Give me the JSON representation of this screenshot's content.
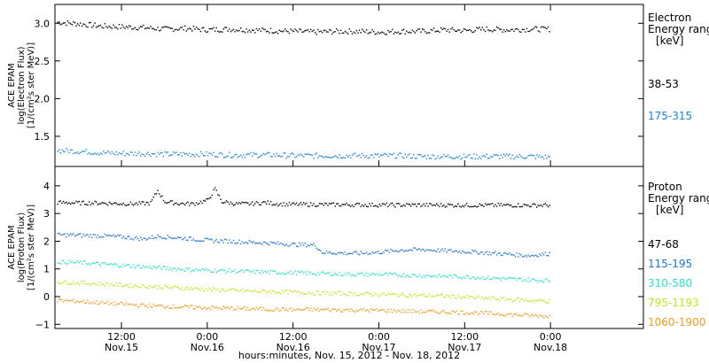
{
  "xlabel": "hours:minutes, Nov. 15, 2012 - Nov. 18, 2012",
  "x_ticks": [
    {
      "time": "12:00",
      "date": "Nov.15",
      "hours": 12
    },
    {
      "time": "0:00",
      "date": "Nov.16",
      "hours": 24
    },
    {
      "time": "12:00",
      "date": "Nov.16",
      "hours": 36
    },
    {
      "time": "0:00",
      "date": "Nov.17",
      "hours": 48
    },
    {
      "time": "12:00",
      "date": "Nov.17",
      "hours": 60
    },
    {
      "time": "0:00",
      "date": "Nov.18",
      "hours": 72
    }
  ],
  "chart_data": [
    {
      "type": "scatter",
      "ylabel_lines": [
        "ACE EPAM",
        "log(Electron Flux)",
        "[1/(cm²s ster MeV)]"
      ],
      "xlim_hours": [
        2.7,
        85
      ],
      "ylim": [
        1.1,
        3.25
      ],
      "y_ticks": [
        1.5,
        2.0,
        2.5,
        3.0
      ],
      "y_tick_labels": [
        "1.5",
        "2.0",
        "2.5",
        "3.0"
      ],
      "legend_title": [
        "Electron",
        "Energy ranges",
        "[keV]"
      ],
      "series": [
        {
          "name": "38-53",
          "color": "#000000",
          "points": [
            [
              3,
              3.02
            ],
            [
              6,
              3.0
            ],
            [
              9,
              2.97
            ],
            [
              12,
              2.96
            ],
            [
              15,
              2.95
            ],
            [
              18,
              2.93
            ],
            [
              21,
              2.94
            ],
            [
              24,
              2.92
            ],
            [
              27,
              2.93
            ],
            [
              30,
              2.92
            ],
            [
              33,
              2.91
            ],
            [
              36,
              2.9
            ],
            [
              39,
              2.89
            ],
            [
              42,
              2.9
            ],
            [
              45,
              2.9
            ],
            [
              48,
              2.89
            ],
            [
              51,
              2.9
            ],
            [
              54,
              2.9
            ],
            [
              57,
              2.92
            ],
            [
              60,
              2.91
            ],
            [
              63,
              2.93
            ],
            [
              66,
              2.92
            ],
            [
              69,
              2.93
            ],
            [
              72,
              2.93
            ]
          ]
        },
        {
          "name": "175-315",
          "color": "#1a86d6",
          "points": [
            [
              3,
              1.32
            ],
            [
              6,
              1.31
            ],
            [
              9,
              1.29
            ],
            [
              12,
              1.28
            ],
            [
              15,
              1.28
            ],
            [
              18,
              1.27
            ],
            [
              21,
              1.27
            ],
            [
              24,
              1.27
            ],
            [
              27,
              1.26
            ],
            [
              30,
              1.26
            ],
            [
              33,
              1.26
            ],
            [
              36,
              1.25
            ],
            [
              39,
              1.25
            ],
            [
              42,
              1.25
            ],
            [
              45,
              1.25
            ],
            [
              48,
              1.25
            ],
            [
              51,
              1.25
            ],
            [
              54,
              1.24
            ],
            [
              57,
              1.24
            ],
            [
              60,
              1.24
            ],
            [
              63,
              1.24
            ],
            [
              66,
              1.24
            ],
            [
              69,
              1.24
            ],
            [
              72,
              1.23
            ]
          ]
        }
      ]
    },
    {
      "type": "scatter",
      "ylabel_lines": [
        "ACE EPAM",
        "log(Proton Flux)",
        "[1/(cm²s ster MeV)]"
      ],
      "xlim_hours": [
        2.7,
        85
      ],
      "ylim": [
        -1.15,
        4.7
      ],
      "y_ticks": [
        -1,
        0,
        1,
        2,
        3,
        4
      ],
      "y_tick_labels": [
        "−1",
        "0",
        "1",
        "2",
        "3",
        "4"
      ],
      "legend_title": [
        "Proton",
        "Energy ranges",
        "[keV]"
      ],
      "series": [
        {
          "name": "47-68",
          "color": "#000000",
          "points": [
            [
              3,
              3.42
            ],
            [
              6,
              3.4
            ],
            [
              9,
              3.4
            ],
            [
              12,
              3.38
            ],
            [
              14,
              3.37
            ],
            [
              16,
              3.4
            ],
            [
              17,
              3.85
            ],
            [
              18,
              3.45
            ],
            [
              20,
              3.38
            ],
            [
              22,
              3.37
            ],
            [
              24,
              3.5
            ],
            [
              25,
              3.9
            ],
            [
              26,
              3.45
            ],
            [
              28,
              3.37
            ],
            [
              30,
              3.37
            ],
            [
              32,
              3.42
            ],
            [
              34,
              3.36
            ],
            [
              36,
              3.35
            ],
            [
              42,
              3.34
            ],
            [
              48,
              3.33
            ],
            [
              54,
              3.33
            ],
            [
              60,
              3.32
            ],
            [
              66,
              3.32
            ],
            [
              72,
              3.32
            ]
          ]
        },
        {
          "name": "115-195",
          "color": "#1a76d6",
          "points": [
            [
              3,
              2.25
            ],
            [
              6,
              2.24
            ],
            [
              9,
              2.22
            ],
            [
              12,
              2.18
            ],
            [
              15,
              2.1
            ],
            [
              17,
              2.2
            ],
            [
              18,
              2.18
            ],
            [
              21,
              2.12
            ],
            [
              24,
              2.05
            ],
            [
              27,
              2.02
            ],
            [
              30,
              1.98
            ],
            [
              33,
              1.95
            ],
            [
              36,
              1.9
            ],
            [
              39,
              1.88
            ],
            [
              40,
              1.62
            ],
            [
              42,
              1.6
            ],
            [
              45,
              1.58
            ],
            [
              48,
              1.62
            ],
            [
              51,
              1.7
            ],
            [
              54,
              1.72
            ],
            [
              57,
              1.68
            ],
            [
              60,
              1.65
            ],
            [
              63,
              1.6
            ],
            [
              66,
              1.55
            ],
            [
              69,
              1.5
            ],
            [
              72,
              1.58
            ]
          ]
        },
        {
          "name": "310-580",
          "color": "#2de0c8",
          "points": [
            [
              3,
              1.28
            ],
            [
              6,
              1.25
            ],
            [
              9,
              1.2
            ],
            [
              12,
              1.15
            ],
            [
              15,
              1.1
            ],
            [
              18,
              1.05
            ],
            [
              21,
              1.0
            ],
            [
              24,
              0.97
            ],
            [
              27,
              0.95
            ],
            [
              30,
              0.92
            ],
            [
              33,
              0.9
            ],
            [
              36,
              0.88
            ],
            [
              39,
              0.86
            ],
            [
              42,
              0.84
            ],
            [
              45,
              0.82
            ],
            [
              48,
              0.82
            ],
            [
              51,
              0.8
            ],
            [
              54,
              0.78
            ],
            [
              57,
              0.76
            ],
            [
              60,
              0.74
            ],
            [
              63,
              0.7
            ],
            [
              66,
              0.66
            ],
            [
              69,
              0.62
            ],
            [
              72,
              0.6
            ]
          ]
        },
        {
          "name": "795-1193",
          "color": "#c8e020",
          "points": [
            [
              3,
              0.55
            ],
            [
              6,
              0.52
            ],
            [
              9,
              0.48
            ],
            [
              12,
              0.44
            ],
            [
              15,
              0.4
            ],
            [
              18,
              0.36
            ],
            [
              21,
              0.32
            ],
            [
              24,
              0.28
            ],
            [
              27,
              0.25
            ],
            [
              30,
              0.22
            ],
            [
              33,
              0.2
            ],
            [
              36,
              0.18
            ],
            [
              39,
              0.15
            ],
            [
              42,
              0.14
            ],
            [
              45,
              0.12
            ],
            [
              48,
              0.1
            ],
            [
              51,
              0.08
            ],
            [
              54,
              0.06
            ],
            [
              57,
              0.04
            ],
            [
              60,
              0.0
            ],
            [
              63,
              -0.04
            ],
            [
              66,
              -0.08
            ],
            [
              69,
              -0.12
            ],
            [
              72,
              -0.15
            ]
          ]
        },
        {
          "name": "1060-1900",
          "color": "#f29a1a",
          "points": [
            [
              3,
              -0.12
            ],
            [
              6,
              -0.15
            ],
            [
              9,
              -0.2
            ],
            [
              12,
              -0.25
            ],
            [
              15,
              -0.3
            ],
            [
              18,
              -0.33
            ],
            [
              21,
              -0.36
            ],
            [
              24,
              -0.38
            ],
            [
              27,
              -0.4
            ],
            [
              30,
              -0.42
            ],
            [
              33,
              -0.44
            ],
            [
              36,
              -0.45
            ],
            [
              39,
              -0.45
            ],
            [
              42,
              -0.46
            ],
            [
              45,
              -0.47
            ],
            [
              48,
              -0.48
            ],
            [
              51,
              -0.5
            ],
            [
              54,
              -0.52
            ],
            [
              57,
              -0.53
            ],
            [
              60,
              -0.55
            ],
            [
              63,
              -0.58
            ],
            [
              66,
              -0.62
            ],
            [
              69,
              -0.66
            ],
            [
              72,
              -0.68
            ]
          ]
        }
      ]
    }
  ]
}
